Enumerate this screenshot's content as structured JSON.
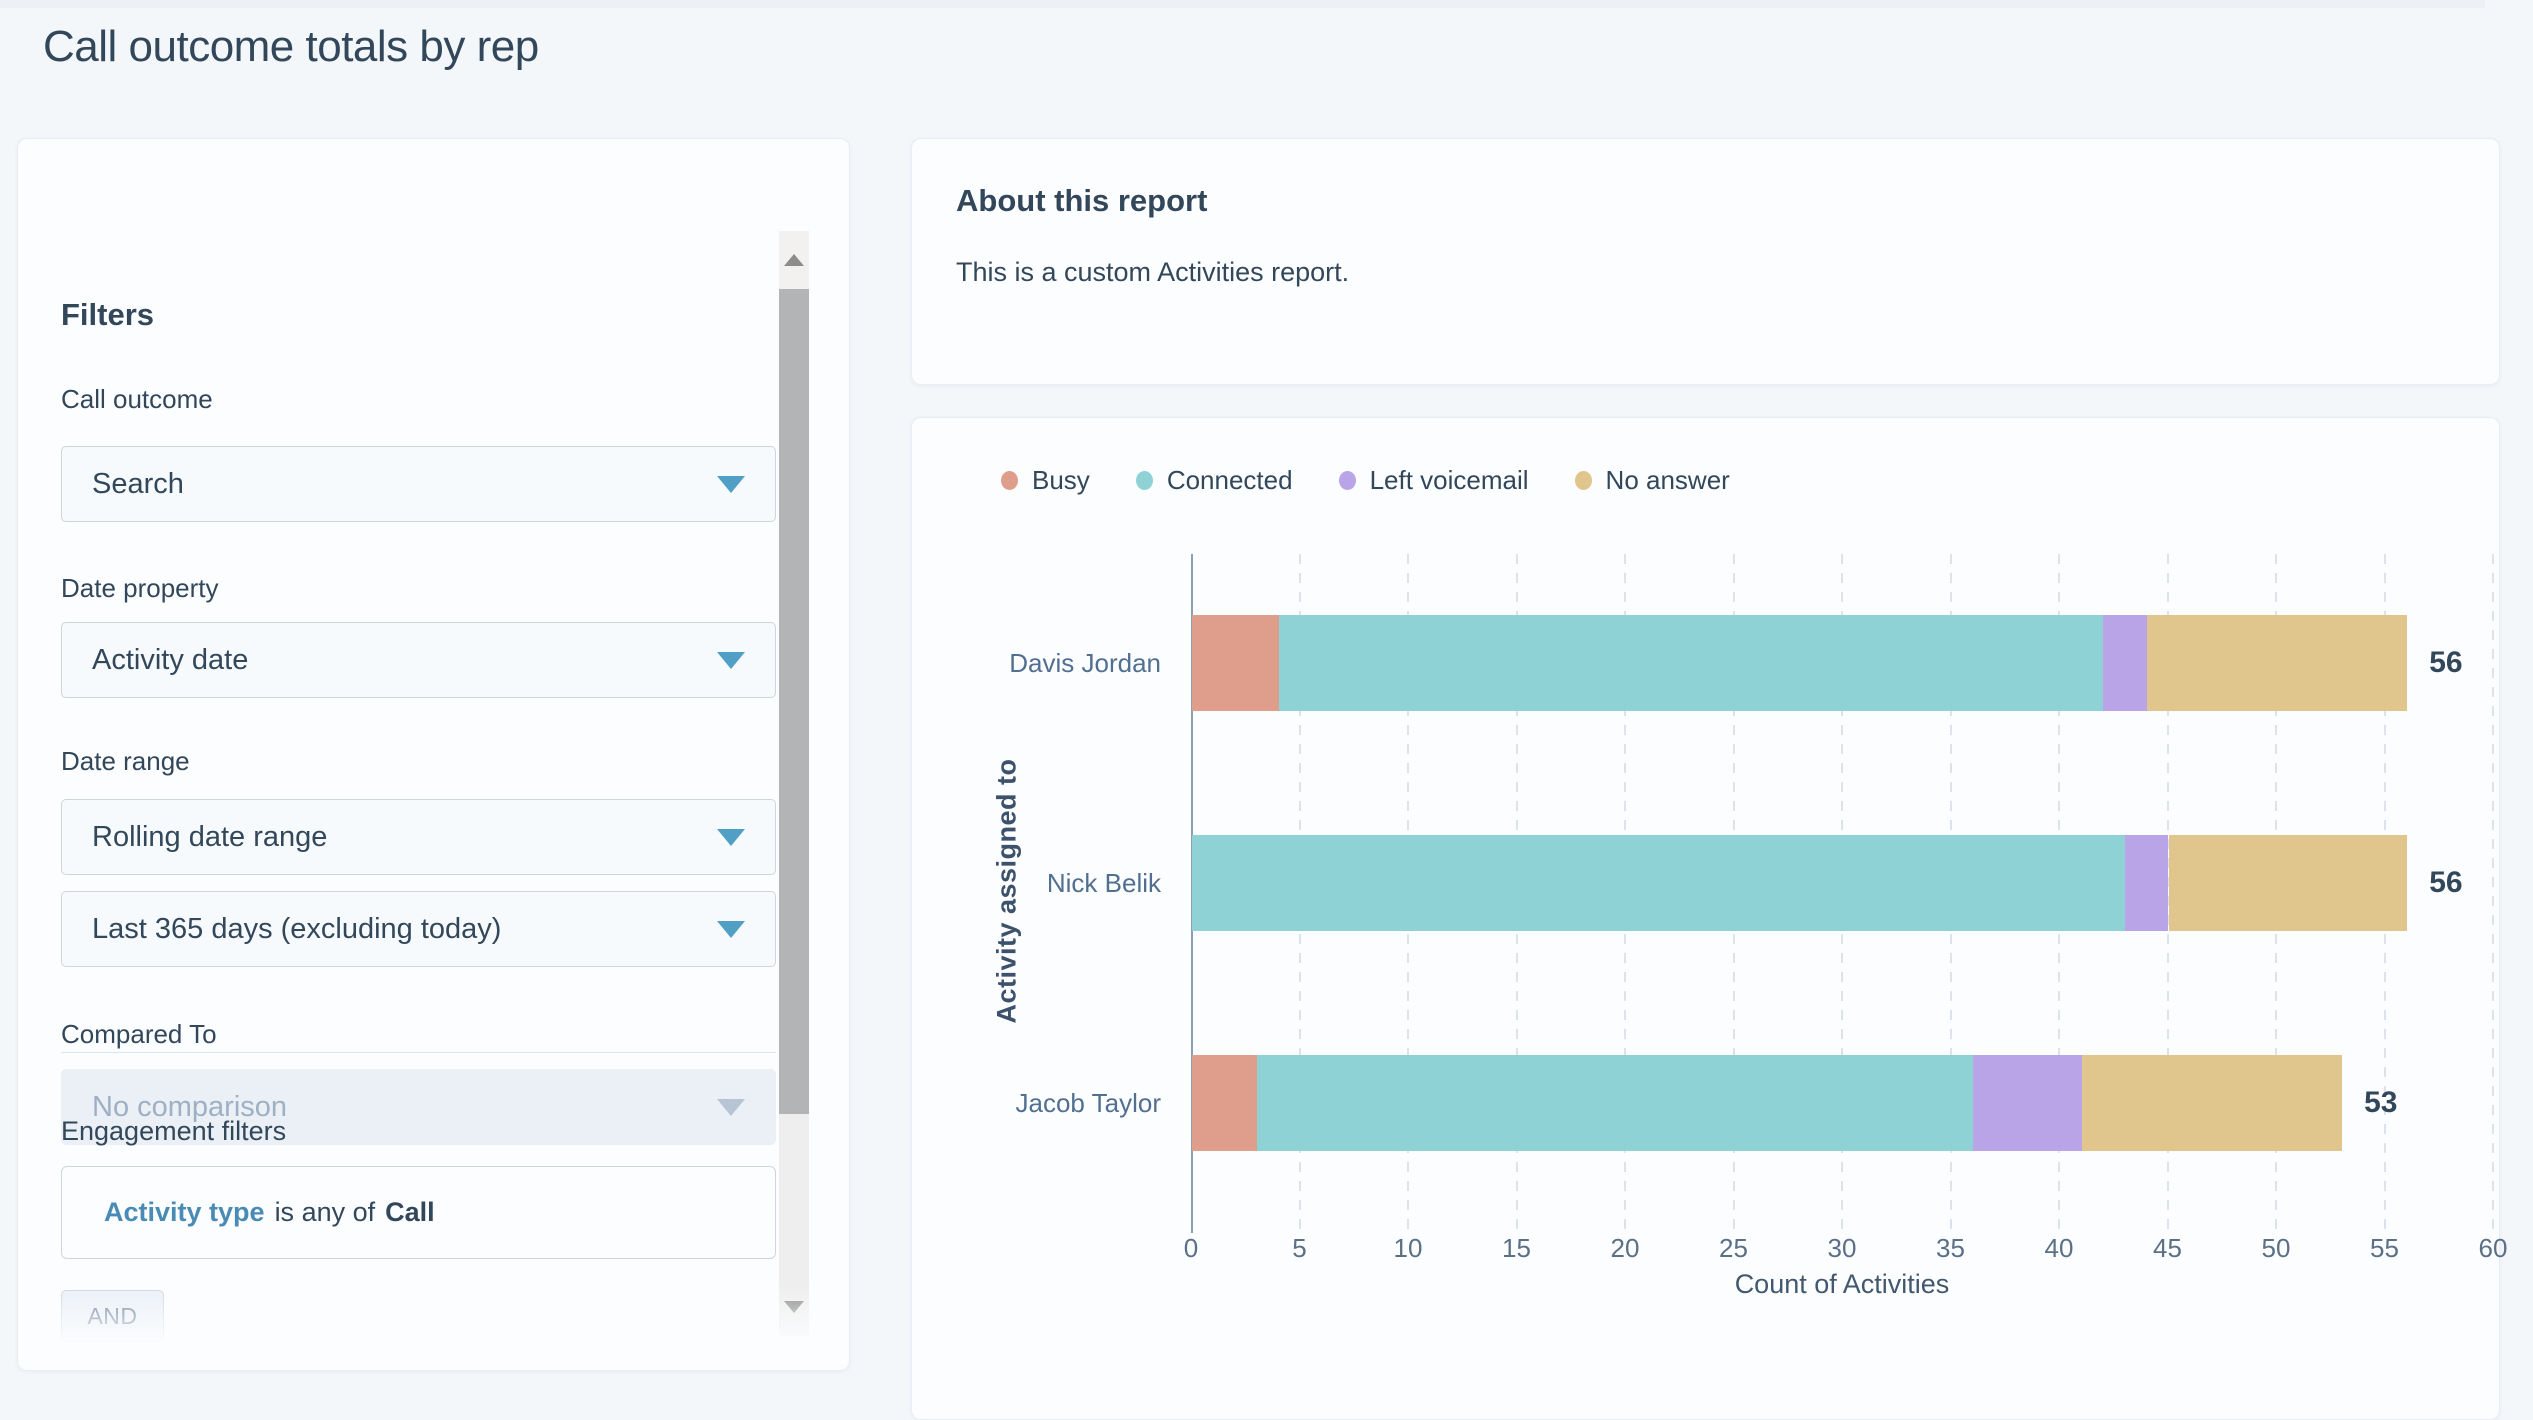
{
  "page": {
    "title": "Call outcome totals by rep"
  },
  "theme": {
    "page_bg": "#f4f7fa",
    "card_bg": "#fcfdff",
    "heading": "#33475b",
    "muted": "#516f90",
    "accent": "#509fc5",
    "link": "#4a8bb5",
    "input_border": "#cbd6e2",
    "disabled_bg": "#eaf0f6",
    "disabled_text": "#9fb0c5"
  },
  "filters_panel": {
    "heading": "Filters",
    "fields": [
      {
        "label": "Call outcome",
        "value": "Search",
        "disabled": false
      },
      {
        "label": "Date property",
        "value": "Activity date",
        "disabled": false
      },
      {
        "label": "Date range",
        "value": "Rolling date range",
        "disabled": false
      },
      {
        "label": "",
        "value": "Last 365 days (excluding today)",
        "disabled": false
      },
      {
        "label": "Compared To",
        "value": "No comparison",
        "disabled": true
      }
    ],
    "engagement": {
      "heading": "Engagement filters",
      "filter_property": "Activity type",
      "filter_operator": "is any of",
      "filter_value": "Call",
      "and_button": "AND"
    }
  },
  "about_panel": {
    "heading": "About this report",
    "body": "This is a custom Activities report."
  },
  "chart_data": {
    "type": "bar",
    "orientation": "horizontal",
    "stacked": true,
    "categories": [
      "Davis Jordan",
      "Nick Belik",
      "Jacob Taylor"
    ],
    "series": [
      {
        "name": "Busy",
        "color": "#df9e8b",
        "values": [
          4,
          0,
          3
        ]
      },
      {
        "name": "Connected",
        "color": "#8ed2d6",
        "values": [
          38,
          43,
          33
        ]
      },
      {
        "name": "Left voicemail",
        "color": "#b8a4e6",
        "values": [
          2,
          2,
          5
        ]
      },
      {
        "name": "No answer",
        "color": "#e0c68c",
        "values": [
          12,
          11,
          12
        ]
      }
    ],
    "totals": [
      56,
      56,
      53
    ],
    "xlabel": "Count of Activities",
    "ylabel": "Activity assigned to",
    "xlim": [
      0,
      60
    ],
    "xticks": [
      0,
      5,
      10,
      15,
      20,
      25,
      30,
      35,
      40,
      45,
      50,
      55,
      60
    ],
    "grid": "dashed-vertical",
    "legend_position": "top"
  }
}
